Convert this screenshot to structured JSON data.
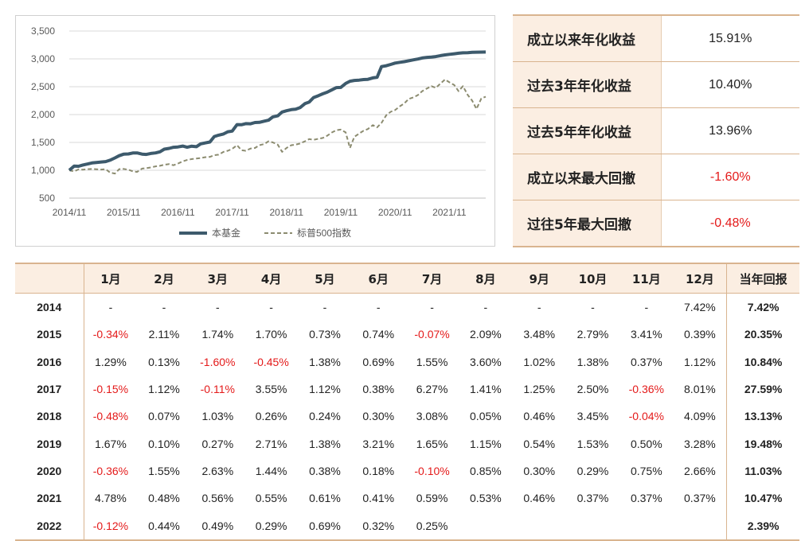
{
  "chart_data": {
    "type": "line",
    "title": "",
    "xlabel": "",
    "ylabel": "",
    "ylim": [
      500,
      3500
    ],
    "y_ticks": [
      "3,500",
      "3,000",
      "2,500",
      "2,000",
      "1,500",
      "1,000",
      "500"
    ],
    "y_tick_values": [
      3500,
      3000,
      2500,
      2000,
      1500,
      1000,
      500
    ],
    "x_tick_labels": [
      "2014/11",
      "2015/11",
      "2016/11",
      "2017/11",
      "2018/11",
      "2019/11",
      "2020/11",
      "2021/11"
    ],
    "x_range_years": [
      2014.83,
      2022.5
    ],
    "x_tick_values": [
      2014.83,
      2015.83,
      2016.83,
      2017.83,
      2018.83,
      2019.83,
      2020.83,
      2021.83
    ],
    "grid": "horizontal",
    "legend_position": "bottom",
    "series": [
      {
        "name": "本基金",
        "color": "#3d5a6c",
        "style": "solid",
        "x": [
          2014.83,
          2014.92,
          2015.0,
          2015.08,
          2015.17,
          2015.25,
          2015.33,
          2015.42,
          2015.5,
          2015.58,
          2015.67,
          2015.75,
          2015.83,
          2015.92,
          2016.0,
          2016.08,
          2016.17,
          2016.25,
          2016.33,
          2016.42,
          2016.5,
          2016.58,
          2016.67,
          2016.75,
          2016.83,
          2016.92,
          2017.0,
          2017.08,
          2017.17,
          2017.25,
          2017.33,
          2017.42,
          2017.5,
          2017.58,
          2017.67,
          2017.75,
          2017.83,
          2017.92,
          2018.0,
          2018.08,
          2018.17,
          2018.25,
          2018.33,
          2018.42,
          2018.5,
          2018.58,
          2018.67,
          2018.75,
          2018.83,
          2018.92,
          2019.0,
          2019.08,
          2019.17,
          2019.25,
          2019.33,
          2019.42,
          2019.5,
          2019.58,
          2019.67,
          2019.75,
          2019.83,
          2019.92,
          2020.0,
          2020.08,
          2020.17,
          2020.25,
          2020.33,
          2020.42,
          2020.5,
          2020.58,
          2020.67,
          2020.75,
          2020.83,
          2020.92,
          2021.0,
          2021.08,
          2021.17,
          2021.25,
          2021.33,
          2021.42,
          2021.5,
          2021.58,
          2021.67,
          2021.75,
          2021.83,
          2021.92,
          2022.0,
          2022.08,
          2022.17,
          2022.25,
          2022.33,
          2022.42,
          2022.5
        ],
        "values": [
          1000,
          1074,
          1071,
          1094,
          1113,
          1132,
          1140,
          1148,
          1156,
          1180,
          1222,
          1262,
          1288,
          1293,
          1310,
          1311,
          1290,
          1284,
          1302,
          1311,
          1331,
          1379,
          1393,
          1413,
          1418,
          1434,
          1413,
          1431,
          1423,
          1474,
          1490,
          1507,
          1606,
          1630,
          1651,
          1692,
          1703,
          1820,
          1817,
          1837,
          1835,
          1857,
          1860,
          1881,
          1899,
          1958,
          1977,
          2045,
          2068,
          2088,
          2096,
          2124,
          2196,
          2226,
          2306,
          2340,
          2373,
          2401,
          2446,
          2484,
          2487,
          2559,
          2599,
          2613,
          2618,
          2629,
          2633,
          2658,
          2670,
          2861,
          2877,
          2900,
          2924,
          2938,
          2950,
          2965,
          2983,
          2997,
          3015,
          3027,
          3033,
          3041,
          3059,
          3071,
          3082,
          3092,
          3101,
          3109,
          3112,
          3117,
          3120,
          3122,
          3123
        ]
      },
      {
        "name": "标普500指数",
        "color": "#8c8c70",
        "style": "dashed",
        "x": [
          2014.83,
          2014.92,
          2015.0,
          2015.08,
          2015.17,
          2015.25,
          2015.33,
          2015.42,
          2015.5,
          2015.58,
          2015.67,
          2015.75,
          2015.83,
          2015.92,
          2016.0,
          2016.08,
          2016.17,
          2016.25,
          2016.33,
          2016.42,
          2016.5,
          2016.58,
          2016.67,
          2016.75,
          2016.83,
          2016.92,
          2017.0,
          2017.08,
          2017.17,
          2017.25,
          2017.33,
          2017.42,
          2017.5,
          2017.58,
          2017.67,
          2017.75,
          2017.83,
          2017.92,
          2018.0,
          2018.08,
          2018.17,
          2018.25,
          2018.33,
          2018.42,
          2018.5,
          2018.58,
          2018.67,
          2018.75,
          2018.83,
          2018.92,
          2019.0,
          2019.08,
          2019.17,
          2019.25,
          2019.33,
          2019.42,
          2019.5,
          2019.58,
          2019.67,
          2019.75,
          2019.83,
          2019.92,
          2020.0,
          2020.08,
          2020.17,
          2020.25,
          2020.33,
          2020.42,
          2020.5,
          2020.58,
          2020.67,
          2020.75,
          2020.83,
          2020.92,
          2021.0,
          2021.08,
          2021.17,
          2021.25,
          2021.33,
          2021.42,
          2021.5,
          2021.58,
          2021.67,
          2021.75,
          2021.83,
          2021.92,
          2022.0,
          2022.08,
          2022.17,
          2022.25,
          2022.33,
          2022.42,
          2022.5
        ],
        "values": [
          1000,
          978,
          1016,
          1012,
          1020,
          1024,
          1018,
          1013,
          1020,
          960,
          940,
          1020,
          1025,
          1010,
          980,
          970,
          1030,
          1038,
          1050,
          1070,
          1080,
          1100,
          1110,
          1090,
          1120,
          1160,
          1185,
          1200,
          1210,
          1220,
          1235,
          1240,
          1270,
          1280,
          1330,
          1350,
          1385,
          1450,
          1360,
          1350,
          1390,
          1400,
          1450,
          1470,
          1520,
          1500,
          1460,
          1330,
          1400,
          1450,
          1460,
          1480,
          1520,
          1560,
          1545,
          1565,
          1580,
          1620,
          1680,
          1720,
          1730,
          1680,
          1400,
          1600,
          1660,
          1710,
          1740,
          1810,
          1770,
          1850,
          1990,
          2050,
          2080,
          2150,
          2200,
          2280,
          2310,
          2350,
          2420,
          2470,
          2510,
          2480,
          2560,
          2630,
          2580,
          2530,
          2420,
          2510,
          2350,
          2250,
          2100,
          2290,
          2320
        ]
      }
    ]
  },
  "stats": [
    {
      "label": "成立以来年化收益",
      "value": "15.91%",
      "negative": false
    },
    {
      "label": "过去3年年化收益",
      "value": "10.40%",
      "negative": false
    },
    {
      "label": "过去5年年化收益",
      "value": "13.96%",
      "negative": false
    },
    {
      "label": "成立以来最大回撤",
      "value": "-1.60%",
      "negative": true
    },
    {
      "label": "过往5年最大回撤",
      "value": "-0.48%",
      "negative": true
    }
  ],
  "monthly": {
    "headers": [
      "",
      "1月",
      "2月",
      "3月",
      "4月",
      "5月",
      "6月",
      "7月",
      "8月",
      "9月",
      "10月",
      "11月",
      "12月",
      "当年回报"
    ],
    "rows": [
      {
        "year": "2014",
        "months": [
          "-",
          "-",
          "-",
          "-",
          "-",
          "-",
          "-",
          "-",
          "-",
          "-",
          "-",
          "7.42%"
        ],
        "annual": "7.42%"
      },
      {
        "year": "2015",
        "months": [
          "-0.34%",
          "2.11%",
          "1.74%",
          "1.70%",
          "0.73%",
          "0.74%",
          "-0.07%",
          "2.09%",
          "3.48%",
          "2.79%",
          "3.41%",
          "0.39%"
        ],
        "annual": "20.35%"
      },
      {
        "year": "2016",
        "months": [
          "1.29%",
          "0.13%",
          "-1.60%",
          "-0.45%",
          "1.38%",
          "0.69%",
          "1.55%",
          "3.60%",
          "1.02%",
          "1.38%",
          "0.37%",
          "1.12%"
        ],
        "annual": "10.84%"
      },
      {
        "year": "2017",
        "months": [
          "-0.15%",
          "1.12%",
          "-0.11%",
          "3.55%",
          "1.12%",
          "0.38%",
          "6.27%",
          "1.41%",
          "1.25%",
          "2.50%",
          "-0.36%",
          "8.01%"
        ],
        "annual": "27.59%"
      },
      {
        "year": "2018",
        "months": [
          "-0.48%",
          "0.07%",
          "1.03%",
          "0.26%",
          "0.24%",
          "0.30%",
          "3.08%",
          "0.05%",
          "0.46%",
          "3.45%",
          "-0.04%",
          "4.09%"
        ],
        "annual": "13.13%"
      },
      {
        "year": "2019",
        "months": [
          "1.67%",
          "0.10%",
          "0.27%",
          "2.71%",
          "1.38%",
          "3.21%",
          "1.65%",
          "1.15%",
          "0.54%",
          "1.53%",
          "0.50%",
          "3.28%"
        ],
        "annual": "19.48%"
      },
      {
        "year": "2020",
        "months": [
          "-0.36%",
          "1.55%",
          "2.63%",
          "1.44%",
          "0.38%",
          "0.18%",
          "-0.10%",
          "0.85%",
          "0.30%",
          "0.29%",
          "0.75%",
          "2.66%"
        ],
        "annual": "11.03%"
      },
      {
        "year": "2021",
        "months": [
          "4.78%",
          "0.48%",
          "0.56%",
          "0.55%",
          "0.61%",
          "0.41%",
          "0.59%",
          "0.53%",
          "0.46%",
          "0.37%",
          "0.37%",
          "0.37%"
        ],
        "annual": "10.47%"
      },
      {
        "year": "2022",
        "months": [
          "-0.12%",
          "0.44%",
          "0.49%",
          "0.29%",
          "0.69%",
          "0.32%",
          "0.25%",
          "",
          "",
          "",
          "",
          ""
        ],
        "annual": "2.39%"
      }
    ]
  },
  "colors": {
    "negative": "#e41a1a",
    "header_bg": "#fbeee2",
    "border": "#d9b48f"
  }
}
